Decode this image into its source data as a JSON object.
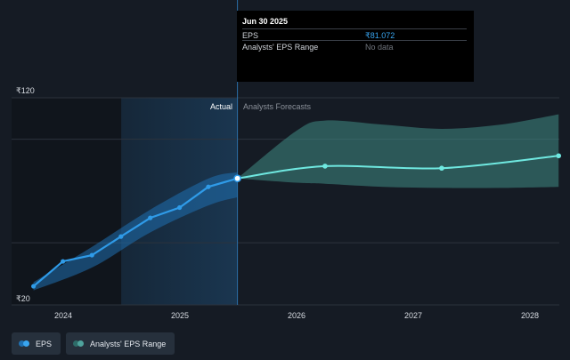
{
  "tooltip": {
    "date": "Jun 30 2025",
    "eps_label": "EPS",
    "eps_value": "₹81.072",
    "range_label": "Analysts' EPS Range",
    "range_value": "No data"
  },
  "regions": {
    "actual_label": "Actual",
    "forecast_label": "Analysts Forecasts"
  },
  "legend": {
    "eps_label": "EPS",
    "range_label": "Analysts' EPS Range"
  },
  "colors": {
    "eps_line": "#2f9be8",
    "forecast_line": "#6fe8e0",
    "actual_band": "#1f6fb0",
    "forecast_band": "#3f8a84",
    "highlight": "#1a3650"
  },
  "chart_data": {
    "type": "line",
    "title": "",
    "xlabel": "",
    "ylabel": "",
    "y_tick_labels": [
      "₹120",
      "₹20"
    ],
    "ylim": [
      20,
      120
    ],
    "x_tick_labels": [
      "2024",
      "2025",
      "2026",
      "2027",
      "2028"
    ],
    "xlim": [
      "2023-06-01",
      "2028-03-31"
    ],
    "grid": true,
    "legend_position": "bottom-left",
    "series": [
      {
        "name": "EPS",
        "kind": "actual",
        "points": [
          {
            "x": "2023-09-30",
            "y": 29
          },
          {
            "x": "2023-12-31",
            "y": 41
          },
          {
            "x": "2024-03-31",
            "y": 44
          },
          {
            "x": "2024-06-30",
            "y": 53
          },
          {
            "x": "2024-09-30",
            "y": 62
          },
          {
            "x": "2024-12-31",
            "y": 67
          },
          {
            "x": "2025-03-31",
            "y": 77
          },
          {
            "x": "2025-06-30",
            "y": 81.072
          }
        ]
      },
      {
        "name": "EPS",
        "kind": "forecast",
        "points": [
          {
            "x": "2025-06-30",
            "y": 81.072
          },
          {
            "x": "2026-03-31",
            "y": 87
          },
          {
            "x": "2027-03-31",
            "y": 86
          },
          {
            "x": "2028-03-31",
            "y": 92
          }
        ]
      }
    ],
    "actual_range": {
      "name": "Analysts' EPS Range",
      "x": [
        "2023-09-30",
        "2024-03-31",
        "2024-09-30",
        "2025-03-31",
        "2025-06-30"
      ],
      "low": [
        27,
        38,
        55,
        68,
        72
      ],
      "high": [
        31,
        48,
        66,
        81,
        84
      ]
    },
    "forecast_range": {
      "name": "Analysts' EPS Range",
      "x": [
        "2025-06-30",
        "2025-12-31",
        "2026-03-31",
        "2026-09-30",
        "2027-03-31",
        "2027-09-30",
        "2028-03-31"
      ],
      "low": [
        81.072,
        79,
        78.5,
        77,
        76.5,
        76.5,
        77
      ],
      "high": [
        81.072,
        104,
        109,
        107,
        105,
        107,
        112
      ]
    },
    "highlight_range": [
      "2024-07-01",
      "2025-06-30"
    ]
  }
}
